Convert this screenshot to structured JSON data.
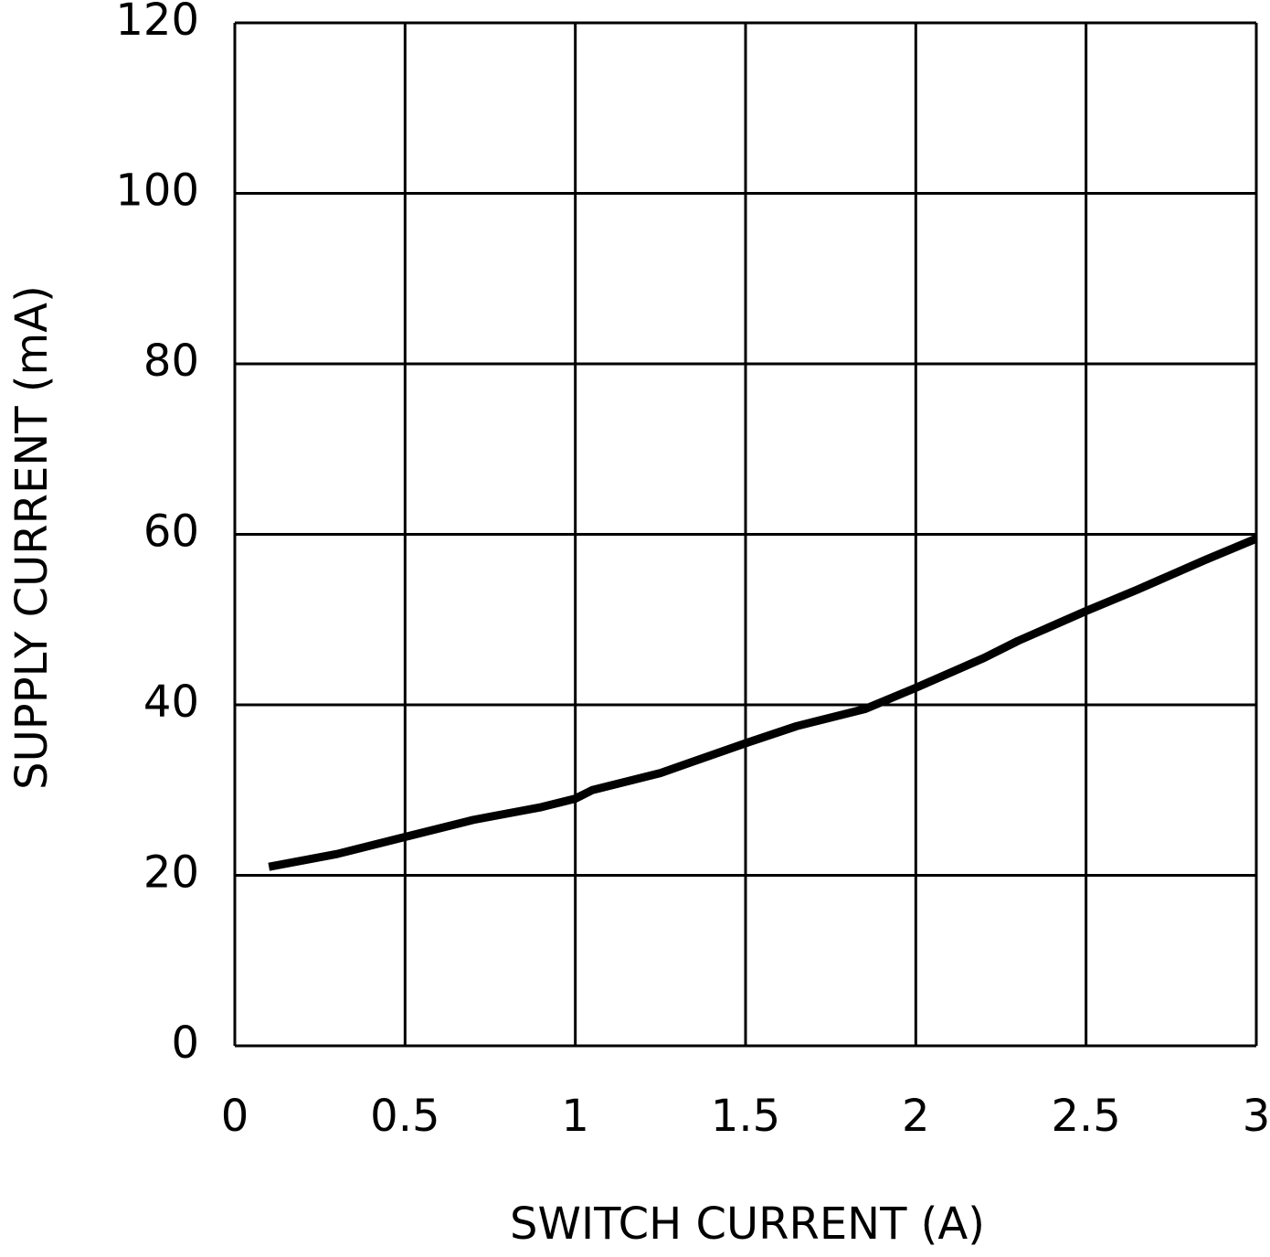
{
  "chart_data": {
    "type": "line",
    "x_label": "SWITCH CURRENT (A)",
    "y_label": "SUPPLY CURRENT (mA)",
    "x": [
      0.1,
      0.3,
      0.5,
      0.7,
      0.9,
      1.0,
      1.05,
      1.25,
      1.5,
      1.65,
      1.85,
      2.0,
      2.2,
      2.3,
      2.5,
      2.65,
      2.85,
      3.0
    ],
    "series": [
      {
        "color": "#000000",
        "values": [
          21,
          22.5,
          24.5,
          26.5,
          28,
          29,
          30,
          32,
          35.5,
          37.5,
          39.5,
          42,
          45.5,
          47.5,
          51,
          53.5,
          57,
          59.5
        ]
      }
    ],
    "xlim": [
      0,
      3
    ],
    "xticks": [
      0,
      0.5,
      1,
      1.5,
      2,
      2.5,
      3
    ],
    "ylim": [
      0,
      120
    ],
    "yticks": [
      0,
      20,
      40,
      60,
      80,
      100,
      120
    ],
    "grid": true
  }
}
